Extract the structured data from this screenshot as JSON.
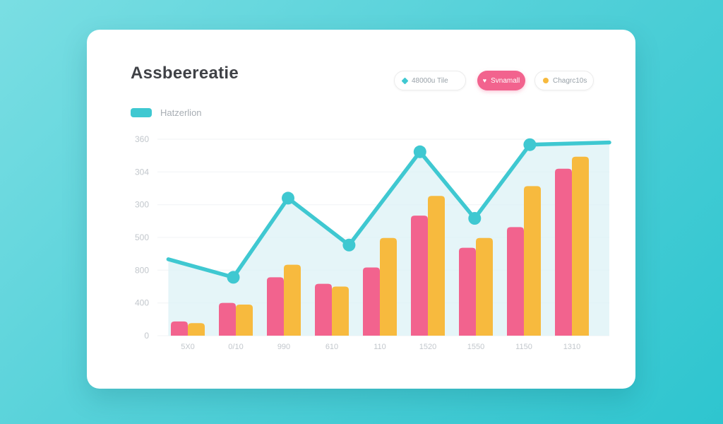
{
  "colors": {
    "background_top": "#7adee3",
    "background_bottom": "#2ec5cf",
    "card": "#ffffff",
    "title_text": "#3f4146",
    "tick_text": "#c2c7cc",
    "grid_line": "#f0f3f5",
    "pink": "#f2638e",
    "yellow": "#f7ba3e",
    "teal": "#3fc8d1",
    "area_fill": "#dcf2f6"
  },
  "header": {
    "title": "Assbeereatie"
  },
  "legend": {
    "buttons": [
      {
        "label": "48000u Tile",
        "style": "outline",
        "marker": "diamond",
        "marker_color": "#3fc8d1",
        "bg": "#ffffff"
      },
      {
        "label": "Svnamall",
        "style": "filled",
        "marker": "heart",
        "marker_color": "#ffffff",
        "bg": "#f2638e"
      },
      {
        "label": "Chagrc10s",
        "style": "outline",
        "marker": "dot",
        "marker_color": "#f7ba3e",
        "bg": "#ffffff"
      }
    ]
  },
  "series_legend": {
    "label": "Hatzerlion",
    "swatch_color": "#3fc8d1"
  },
  "chart_data": {
    "type": "combo: bar + line",
    "title": "Assbeereatie",
    "categories": [
      "5X0",
      "0/10",
      "990",
      "610",
      "110",
      "1520",
      "1550",
      "1150",
      "1310"
    ],
    "y_tick_labels": [
      "360",
      "304",
      "300",
      "500",
      "800",
      "400",
      "0"
    ],
    "ylim": [
      0,
      360
    ],
    "grid": true,
    "legend_position": "top-right",
    "series": [
      {
        "name": "Svnamall",
        "type": "bar",
        "color": "#f2638e",
        "values": [
          26,
          60,
          107,
          95,
          125,
          220,
          161,
          199,
          306
        ]
      },
      {
        "name": "Chagrc10s",
        "type": "bar",
        "color": "#f7ba3e",
        "values": [
          23,
          57,
          130,
          90,
          179,
          256,
          179,
          274,
          328
        ]
      },
      {
        "name": "Hatzerlion",
        "type": "line",
        "color": "#3fc8d1",
        "area_fill": "#dcf2f6",
        "values": [
          140,
          107,
          252,
          166,
          337,
          215,
          350,
          354
        ],
        "x_fractions": [
          0.024,
          0.168,
          0.289,
          0.424,
          0.581,
          0.702,
          0.824,
          1.0
        ],
        "markers": [
          false,
          true,
          true,
          true,
          true,
          true,
          true,
          false
        ]
      }
    ]
  }
}
